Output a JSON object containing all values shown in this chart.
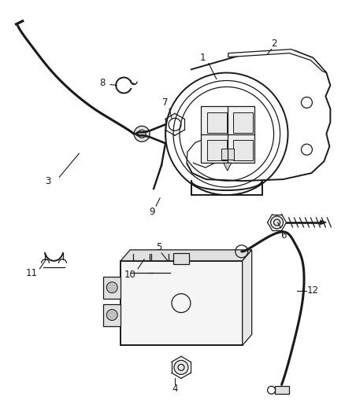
{
  "bg_color": "#ffffff",
  "line_color": "#1a1a1a",
  "figsize": [
    4.38,
    5.33
  ],
  "dpi": 100,
  "label_fontsize": 8.5,
  "lw_main": 1.4,
  "lw_thin": 0.9,
  "lw_cable": 2.2
}
